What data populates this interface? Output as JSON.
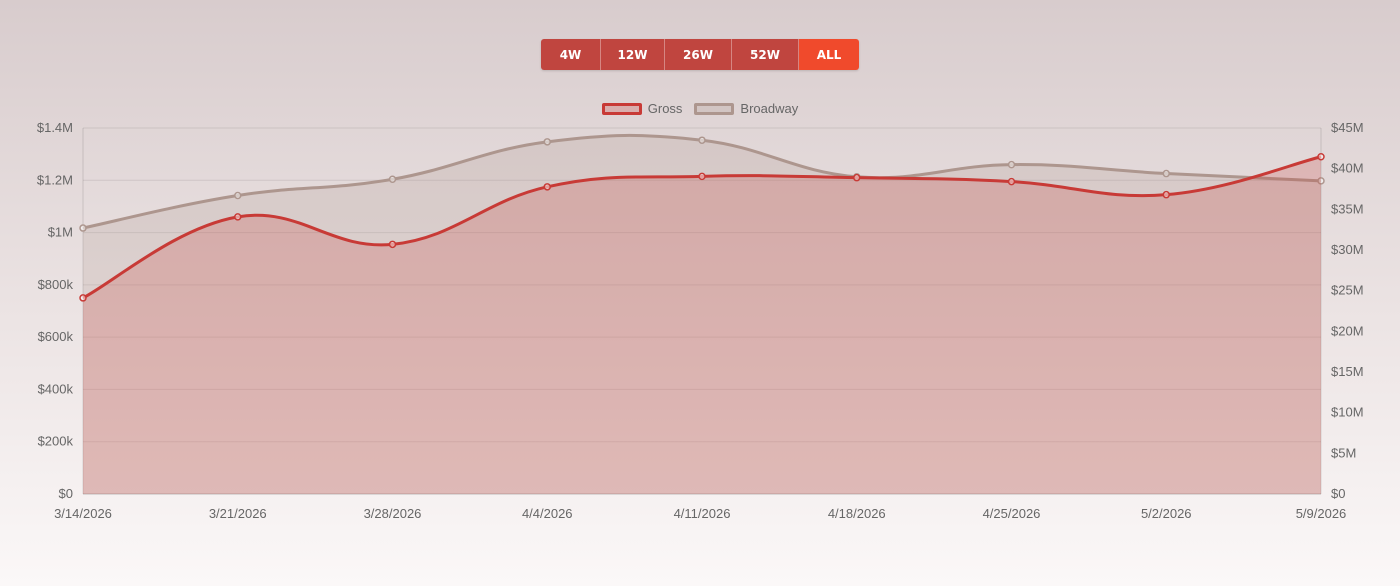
{
  "range_buttons": [
    {
      "label": "4W",
      "active": false
    },
    {
      "label": "12W",
      "active": false
    },
    {
      "label": "26W",
      "active": false
    },
    {
      "label": "52W",
      "active": false
    },
    {
      "label": "ALL",
      "active": true
    }
  ],
  "colors": {
    "gross": "#c83a36",
    "broadway": "#ad968e",
    "active_button": "#f04a2c",
    "button": "#c0453f"
  },
  "chart_data": {
    "type": "line",
    "area_fill": true,
    "x": [
      "3/14/2026",
      "3/21/2026",
      "3/28/2026",
      "4/4/2026",
      "4/11/2026",
      "4/18/2026",
      "4/25/2026",
      "5/2/2026",
      "5/9/2026"
    ],
    "series": [
      {
        "name": "Gross",
        "axis": "left",
        "values": [
          750000,
          1060000,
          955000,
          1175000,
          1215000,
          1210000,
          1195000,
          1145000,
          1290000
        ]
      },
      {
        "name": "Broadway",
        "axis": "right",
        "values": [
          32700000,
          36700000,
          38700000,
          43300000,
          43500000,
          39000000,
          40500000,
          39400000,
          38500000
        ]
      }
    ],
    "y_left": {
      "range": [
        0,
        1400000
      ],
      "ticks": [
        "$0",
        "$200k",
        "$400k",
        "$600k",
        "$800k",
        "$1M",
        "$1.2M",
        "$1.4M"
      ]
    },
    "y_right": {
      "range": [
        0,
        45000000
      ],
      "ticks": [
        "$0",
        "$5M",
        "$10M",
        "$15M",
        "$20M",
        "$25M",
        "$30M",
        "$35M",
        "$40M",
        "$45M"
      ]
    },
    "grid": true,
    "legend_position": "top"
  }
}
